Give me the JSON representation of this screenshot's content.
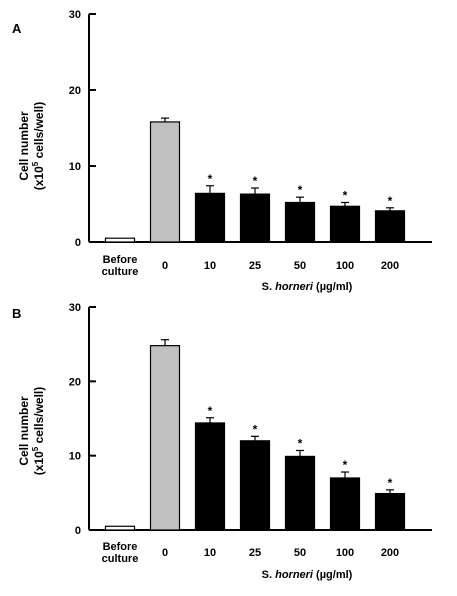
{
  "chart_data": [
    {
      "panel": "A",
      "type": "bar",
      "categories": [
        "Before culture",
        "0",
        "10",
        "25",
        "50",
        "100",
        "200"
      ],
      "category_lines": [
        [
          "Before",
          "culture"
        ],
        [
          "0"
        ],
        [
          "10"
        ],
        [
          "25"
        ],
        [
          "50"
        ],
        [
          "100"
        ],
        [
          "200"
        ]
      ],
      "values": [
        0.5,
        15.8,
        6.4,
        6.3,
        5.2,
        4.7,
        4.1
      ],
      "errors": [
        0,
        0.5,
        1.0,
        0.8,
        0.7,
        0.5,
        0.4
      ],
      "significant": [
        false,
        false,
        true,
        true,
        true,
        true,
        true
      ],
      "bar_colors": [
        "#ffffff",
        "#c0c0c0",
        "#000000",
        "#000000",
        "#000000",
        "#000000",
        "#000000"
      ],
      "ylim": [
        0,
        30
      ],
      "yticks": [
        0,
        10,
        20,
        30
      ],
      "xlabel": {
        "species_prefix": "S. ",
        "species_name": "horneri",
        "unit": " (µg/ml)"
      },
      "ylabel": {
        "line1": "Cell number",
        "prefix": "(x10",
        "sup": "5",
        "suffix": " cells/well)"
      },
      "marker": "*"
    },
    {
      "panel": "B",
      "type": "bar",
      "categories": [
        "Before culture",
        "0",
        "10",
        "25",
        "50",
        "100",
        "200"
      ],
      "category_lines": [
        [
          "Before",
          "culture"
        ],
        [
          "0"
        ],
        [
          "10"
        ],
        [
          "25"
        ],
        [
          "50"
        ],
        [
          "100"
        ],
        [
          "200"
        ]
      ],
      "values": [
        0.5,
        24.8,
        14.4,
        12.0,
        9.9,
        7.0,
        4.9
      ],
      "errors": [
        0,
        0.8,
        0.7,
        0.6,
        0.8,
        0.8,
        0.5
      ],
      "significant": [
        false,
        false,
        true,
        true,
        true,
        true,
        true
      ],
      "bar_colors": [
        "#ffffff",
        "#c0c0c0",
        "#000000",
        "#000000",
        "#000000",
        "#000000",
        "#000000"
      ],
      "ylim": [
        0,
        30
      ],
      "yticks": [
        0,
        10,
        20,
        30
      ],
      "xlabel": {
        "species_prefix": "S. ",
        "species_name": "horneri",
        "unit": " (µg/ml)"
      },
      "ylabel": {
        "line1": "Cell number",
        "prefix": "(x10",
        "sup": "5",
        "suffix": " cells/well)"
      },
      "marker": "*"
    }
  ]
}
